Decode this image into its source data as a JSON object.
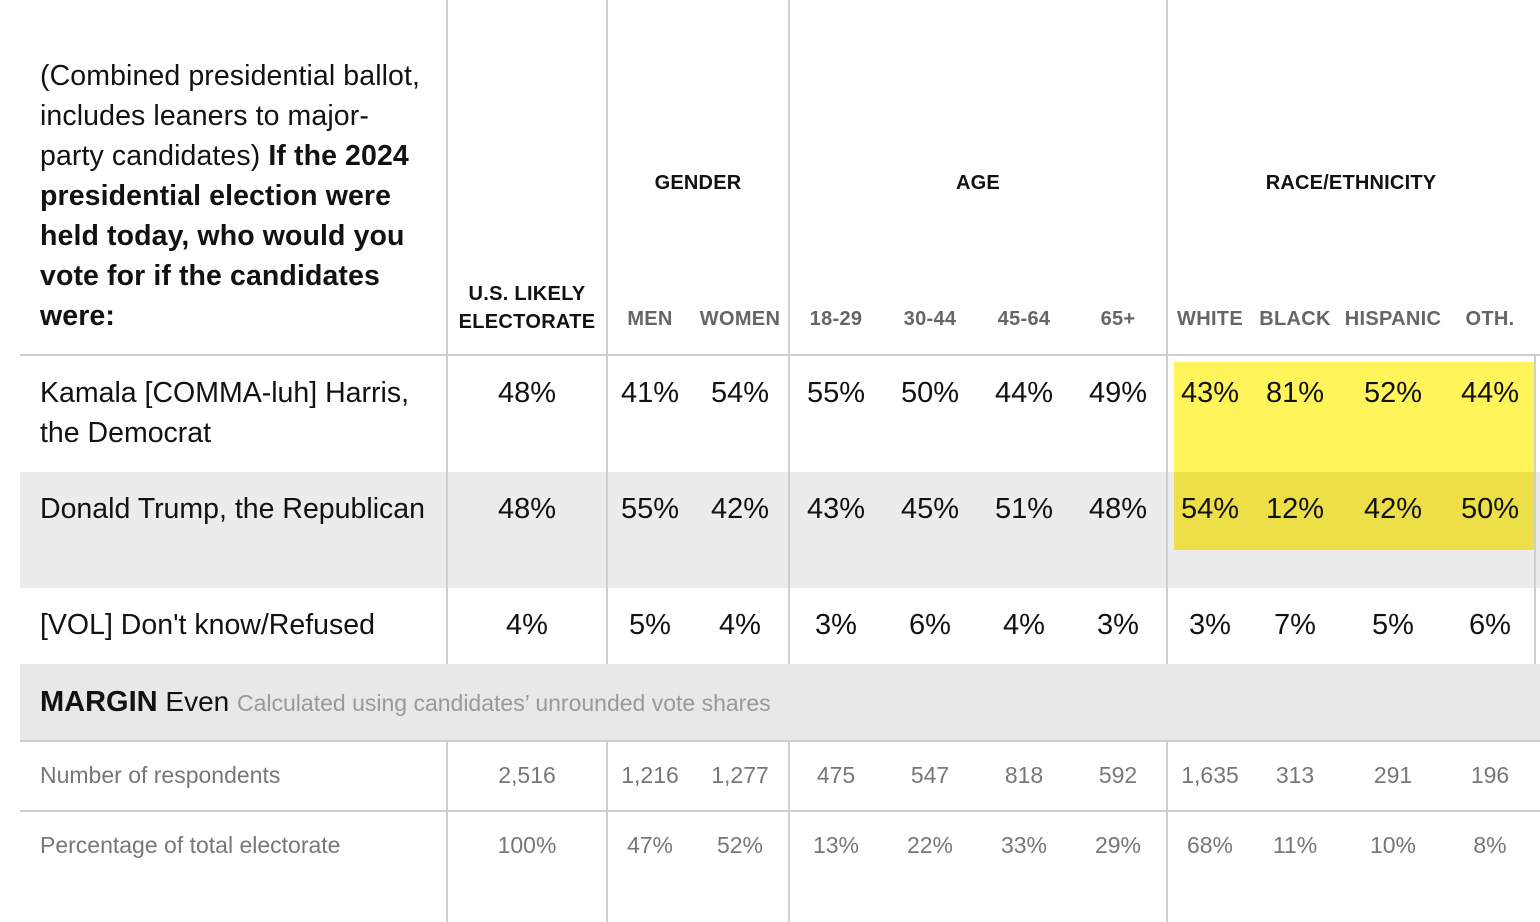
{
  "chart_data": {
    "type": "table",
    "question": {
      "intro": "(Combined presidential ballot, includes leaners to major-party candidates)",
      "bold": "If the 2024 presidential election were held today, who would you vote for if the candidates were:"
    },
    "groups": [
      {
        "label": "GENDER"
      },
      {
        "label": "AGE"
      },
      {
        "label": "RACE/ETHNICITY"
      }
    ],
    "columns": [
      "U.S. LIKELY ELECTORATE",
      "MEN",
      "WOMEN",
      "18-29",
      "30-44",
      "45-64",
      "65+",
      "WHITE",
      "BLACK",
      "HISPANIC",
      "OTH."
    ],
    "rows": [
      {
        "label": "Kamala [COMMA-luh] Harris, the Democrat",
        "values": [
          "48%",
          "41%",
          "54%",
          "55%",
          "50%",
          "44%",
          "49%",
          "43%",
          "81%",
          "52%",
          "44%"
        ]
      },
      {
        "label": "Donald Trump, the Republican",
        "values": [
          "48%",
          "55%",
          "42%",
          "43%",
          "45%",
          "51%",
          "48%",
          "54%",
          "12%",
          "42%",
          "50%"
        ]
      },
      {
        "label": "[VOL] Don't know/Refused",
        "values": [
          "4%",
          "5%",
          "4%",
          "3%",
          "6%",
          "4%",
          "3%",
          "3%",
          "7%",
          "5%",
          "6%"
        ]
      }
    ],
    "margin": {
      "label": "MARGIN",
      "value": "Even",
      "note": "Calculated using candidates’ unrounded vote shares"
    },
    "footer_rows": [
      {
        "label": "Number of respondents",
        "values": [
          "2,516",
          "1,216",
          "1,277",
          "475",
          "547",
          "818",
          "592",
          "1,635",
          "313",
          "291",
          "196"
        ]
      },
      {
        "label": "Percentage of total electorate",
        "values": [
          "100%",
          "47%",
          "52%",
          "13%",
          "22%",
          "33%",
          "29%",
          "68%",
          "11%",
          "10%",
          "8%"
        ]
      }
    ],
    "highlight": {
      "columns": [
        "WHITE",
        "BLACK",
        "HISPANIC",
        "OTH."
      ],
      "rows": [
        0,
        1
      ],
      "color": "#fff55a"
    }
  }
}
